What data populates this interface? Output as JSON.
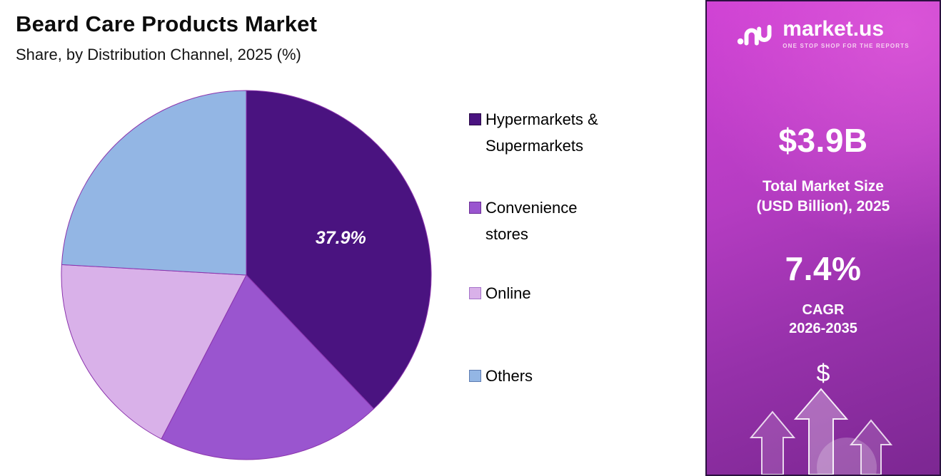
{
  "header": {
    "title": "Beard Care Products Market",
    "subtitle": "Share, by Distribution Channel, 2025 (%)"
  },
  "chart_data": {
    "type": "pie",
    "title": "Beard Care Products Market Share, by Distribution Channel, 2025 (%)",
    "categories": [
      "Hypermarkets & Supermarkets",
      "Convenience stores",
      "Online",
      "Others"
    ],
    "values": [
      37.9,
      19.7,
      18.3,
      24.1
    ],
    "labels": [
      "37.9%",
      "",
      "",
      ""
    ],
    "colors": [
      "#4a1380",
      "#9a55cf",
      "#d9b1e9",
      "#93b6e4"
    ],
    "swatch_border_colors": [
      "#2a0a45",
      "#6b2d96",
      "#a472c9",
      "#5e7cb2"
    ],
    "slice_stroke": "#8b34ad",
    "start_angle": "top",
    "direction": "clockwise",
    "legend_position": "right"
  },
  "side_panel": {
    "brand": {
      "name": "market.us",
      "tagline": "ONE STOP SHOP FOR THE REPORTS"
    },
    "market_size_value": "$3.9B",
    "market_size_label_line1": "Total Market Size",
    "market_size_label_line2": "(USD Billion), 2025",
    "cagr_value": "7.4%",
    "cagr_label_line1": "CAGR",
    "cagr_label_line2": "2026-2035",
    "decor": {
      "dollar_glyph": "$"
    },
    "colors": {
      "gradient_top": "#cf41d4",
      "gradient_bottom": "#7c2792"
    }
  }
}
